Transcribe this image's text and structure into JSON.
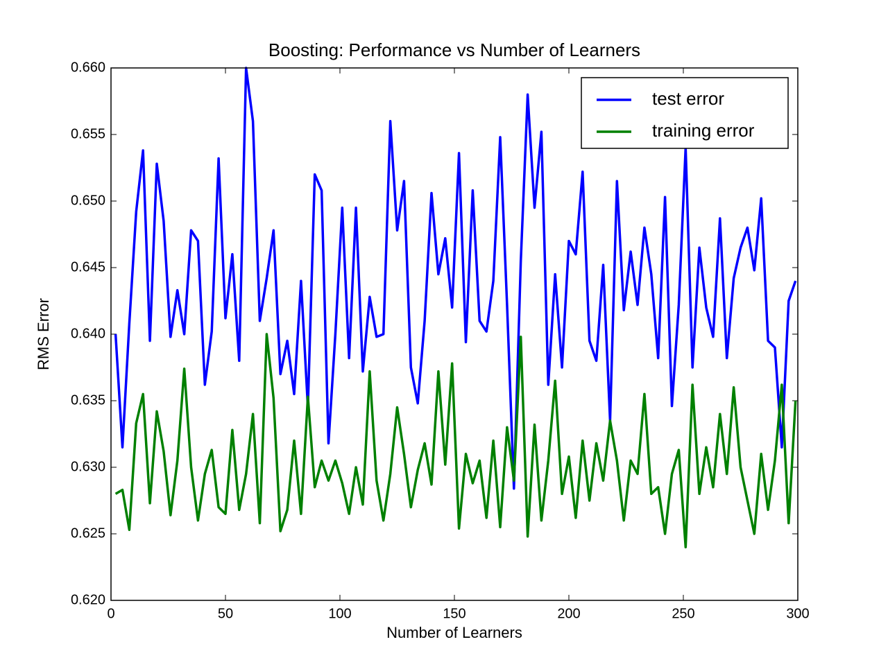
{
  "chart_data": {
    "type": "line",
    "title": "Boosting: Performance vs Number of Learners",
    "xlabel": "Number of Learners",
    "ylabel": "RMS Error",
    "x": [
      2,
      5,
      8,
      11,
      14,
      17,
      20,
      23,
      26,
      29,
      32,
      35,
      38,
      41,
      44,
      47,
      50,
      53,
      56,
      59,
      62,
      65,
      68,
      71,
      74,
      77,
      80,
      83,
      86,
      89,
      92,
      95,
      98,
      101,
      104,
      107,
      110,
      113,
      116,
      119,
      122,
      125,
      128,
      131,
      134,
      137,
      140,
      143,
      146,
      149,
      152,
      155,
      158,
      161,
      164,
      167,
      170,
      173,
      176,
      179,
      182,
      185,
      188,
      191,
      194,
      197,
      200,
      203,
      206,
      209,
      212,
      215,
      218,
      221,
      224,
      227,
      230,
      233,
      236,
      239,
      242,
      245,
      248,
      251,
      254,
      257,
      260,
      263,
      266,
      269,
      272,
      275,
      278,
      281,
      284,
      287,
      290,
      293,
      296,
      299
    ],
    "series": [
      {
        "name": "test error",
        "color": "#0000ff",
        "values": [
          0.64,
          0.6315,
          0.6408,
          0.6492,
          0.6538,
          0.6395,
          0.6528,
          0.6485,
          0.6398,
          0.6433,
          0.64,
          0.6478,
          0.647,
          0.6362,
          0.6402,
          0.6532,
          0.6412,
          0.646,
          0.638,
          0.66,
          0.656,
          0.641,
          0.6442,
          0.6478,
          0.637,
          0.6395,
          0.6355,
          0.644,
          0.6345,
          0.652,
          0.6508,
          0.6318,
          0.64,
          0.6495,
          0.6382,
          0.6495,
          0.6372,
          0.6428,
          0.6398,
          0.64,
          0.656,
          0.6478,
          0.6515,
          0.6375,
          0.6348,
          0.641,
          0.6506,
          0.6445,
          0.6472,
          0.642,
          0.6536,
          0.6394,
          0.6508,
          0.641,
          0.6402,
          0.644,
          0.6548,
          0.6422,
          0.6284,
          0.6455,
          0.658,
          0.6495,
          0.6552,
          0.6362,
          0.6445,
          0.6375,
          0.647,
          0.646,
          0.6522,
          0.6395,
          0.638,
          0.6452,
          0.6335,
          0.6515,
          0.6418,
          0.6462,
          0.6422,
          0.648,
          0.6445,
          0.6382,
          0.6503,
          0.6346,
          0.6422,
          0.654,
          0.6375,
          0.6465,
          0.642,
          0.6398,
          0.6487,
          0.6382,
          0.6442,
          0.6465,
          0.648,
          0.6448,
          0.6502,
          0.6395,
          0.639,
          0.6315,
          0.6425,
          0.644
        ]
      },
      {
        "name": "training error",
        "color": "#008000",
        "values": [
          0.628,
          0.6283,
          0.6253,
          0.6333,
          0.6355,
          0.6273,
          0.6342,
          0.6312,
          0.6264,
          0.6305,
          0.6374,
          0.63,
          0.626,
          0.6295,
          0.6313,
          0.627,
          0.6265,
          0.6328,
          0.6268,
          0.6295,
          0.634,
          0.6258,
          0.64,
          0.6352,
          0.6252,
          0.6268,
          0.632,
          0.6265,
          0.6353,
          0.6285,
          0.6305,
          0.629,
          0.6305,
          0.6288,
          0.6265,
          0.63,
          0.6272,
          0.6372,
          0.629,
          0.626,
          0.6295,
          0.6345,
          0.631,
          0.627,
          0.6298,
          0.6318,
          0.6287,
          0.6372,
          0.6302,
          0.6378,
          0.6254,
          0.631,
          0.6288,
          0.6305,
          0.6262,
          0.632,
          0.6255,
          0.633,
          0.629,
          0.6398,
          0.6248,
          0.6332,
          0.626,
          0.6305,
          0.6365,
          0.628,
          0.6308,
          0.6262,
          0.632,
          0.6275,
          0.6318,
          0.629,
          0.6335,
          0.6305,
          0.626,
          0.6305,
          0.6295,
          0.6355,
          0.628,
          0.6285,
          0.625,
          0.6295,
          0.6313,
          0.624,
          0.6362,
          0.628,
          0.6315,
          0.6285,
          0.634,
          0.6295,
          0.636,
          0.63,
          0.6275,
          0.625,
          0.631,
          0.6268,
          0.6305,
          0.6362,
          0.6258,
          0.635
        ]
      }
    ],
    "xlim": [
      0,
      300
    ],
    "xticks": [
      0,
      50,
      100,
      150,
      200,
      250,
      300
    ],
    "ylim": [
      0.62,
      0.66
    ],
    "yticks": [
      {
        "value": 0.62,
        "label": "0.620"
      },
      0.625,
      {
        "value": 0.63,
        "label": "0.630"
      },
      0.635,
      {
        "value": 0.64,
        "label": "0.640"
      },
      0.645,
      {
        "value": 0.65,
        "label": "0.650"
      },
      0.655,
      {
        "value": 0.66,
        "label": "0.660"
      }
    ],
    "legend": "upper right",
    "grid": false
  }
}
